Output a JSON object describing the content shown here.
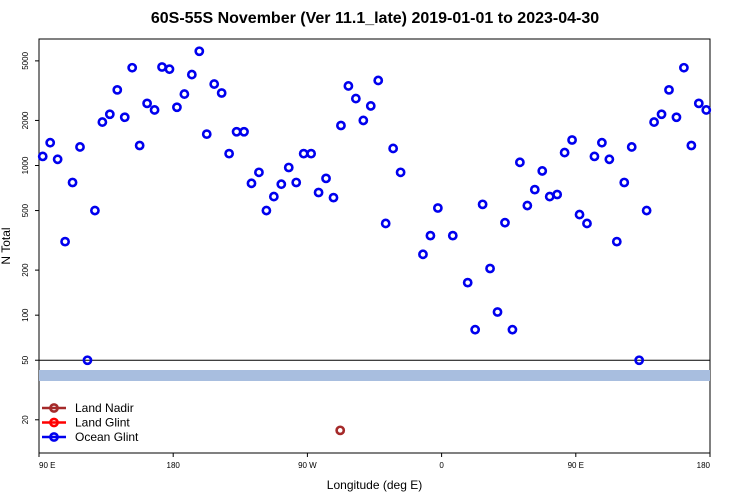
{
  "chart_data": {
    "type": "scatter",
    "title": "60S-55S November (Ver 11.1_late)   2019-01-01 to 2023-04-30",
    "xlabel": "Longitude (deg E)",
    "ylabel": "N Total",
    "y_scale": "log",
    "xlim": [
      90,
      540
    ],
    "ylim": [
      12,
      7000
    ],
    "grid": false,
    "legend_position": "bottom-left",
    "x_ticks": [
      {
        "value": 90,
        "label": "90 E"
      },
      {
        "value": 180,
        "label": "180"
      },
      {
        "value": 270,
        "label": "90 W"
      },
      {
        "value": 360,
        "label": "0"
      },
      {
        "value": 450,
        "label": "90 E"
      },
      {
        "value": 540,
        "label": "180"
      }
    ],
    "y_ticks": [
      {
        "value": 20,
        "label": "20"
      },
      {
        "value": 50,
        "label": "50"
      },
      {
        "value": 100,
        "label": "100"
      },
      {
        "value": 200,
        "label": "200"
      },
      {
        "value": 500,
        "label": "500"
      },
      {
        "value": 1000,
        "label": "1000"
      },
      {
        "value": 2000,
        "label": "2000"
      },
      {
        "value": 5000,
        "label": "5000"
      }
    ],
    "threshold_line": 50,
    "band_color": "#a8bedf",
    "series": [
      {
        "name": "Land Nadir",
        "color": "#a52a2a",
        "points": [
          [
            292,
            17
          ]
        ]
      },
      {
        "name": "Land Glint",
        "color": "#ff0000",
        "points": []
      },
      {
        "name": "Ocean Glint",
        "color": "#0000ee",
        "points": [
          [
            92.5,
            1150
          ],
          [
            97.5,
            1420
          ],
          [
            102.5,
            1100
          ],
          [
            107.5,
            310
          ],
          [
            112.5,
            770
          ],
          [
            117.5,
            1330
          ],
          [
            122.5,
            50
          ],
          [
            127.5,
            500
          ],
          [
            132.5,
            1950
          ],
          [
            137.5,
            2200
          ],
          [
            142.5,
            3200
          ],
          [
            147.5,
            2100
          ],
          [
            152.5,
            4500
          ],
          [
            157.5,
            1360
          ],
          [
            162.5,
            2600
          ],
          [
            167.5,
            2350
          ],
          [
            172.5,
            4550
          ],
          [
            177.5,
            4400
          ],
          [
            182.5,
            2450
          ],
          [
            187.5,
            3000
          ],
          [
            192.5,
            4050
          ],
          [
            197.5,
            5800
          ],
          [
            202.5,
            1620
          ],
          [
            207.5,
            3500
          ],
          [
            212.5,
            3050
          ],
          [
            217.5,
            1200
          ],
          [
            222.5,
            1680
          ],
          [
            227.5,
            1680
          ],
          [
            232.5,
            760
          ],
          [
            237.5,
            900
          ],
          [
            242.5,
            500
          ],
          [
            247.5,
            620
          ],
          [
            252.5,
            750
          ],
          [
            257.5,
            970
          ],
          [
            262.5,
            770
          ],
          [
            267.5,
            1200
          ],
          [
            272.5,
            1200
          ],
          [
            277.5,
            660
          ],
          [
            282.5,
            820
          ],
          [
            287.5,
            610
          ],
          [
            292.5,
            1850
          ],
          [
            297.5,
            3400
          ],
          [
            302.5,
            2800
          ],
          [
            307.5,
            2000
          ],
          [
            312.5,
            2500
          ],
          [
            317.5,
            3700
          ],
          [
            322.5,
            410
          ],
          [
            327.5,
            1300
          ],
          [
            332.5,
            900
          ],
          [
            347.5,
            255
          ],
          [
            352.5,
            340
          ],
          [
            357.5,
            520
          ],
          [
            367.5,
            340
          ],
          [
            377.5,
            165
          ],
          [
            382.5,
            80
          ],
          [
            387.5,
            550
          ],
          [
            392.5,
            205
          ],
          [
            397.5,
            105
          ],
          [
            402.5,
            415
          ],
          [
            407.5,
            80
          ],
          [
            412.5,
            1050
          ],
          [
            417.5,
            540
          ],
          [
            422.5,
            690
          ],
          [
            427.5,
            920
          ],
          [
            432.5,
            620
          ],
          [
            437.5,
            640
          ],
          [
            442.5,
            1220
          ],
          [
            447.5,
            1480
          ],
          [
            452.5,
            470
          ],
          [
            457.5,
            410
          ],
          [
            462.5,
            1150
          ],
          [
            467.5,
            1420
          ],
          [
            472.5,
            1100
          ],
          [
            477.5,
            310
          ],
          [
            482.5,
            770
          ],
          [
            487.5,
            1330
          ],
          [
            492.5,
            50
          ],
          [
            497.5,
            500
          ],
          [
            502.5,
            1950
          ],
          [
            507.5,
            2200
          ],
          [
            512.5,
            3200
          ],
          [
            517.5,
            2100
          ],
          [
            522.5,
            4500
          ],
          [
            527.5,
            1360
          ],
          [
            532.5,
            2600
          ],
          [
            537.5,
            2350
          ]
        ]
      }
    ]
  }
}
